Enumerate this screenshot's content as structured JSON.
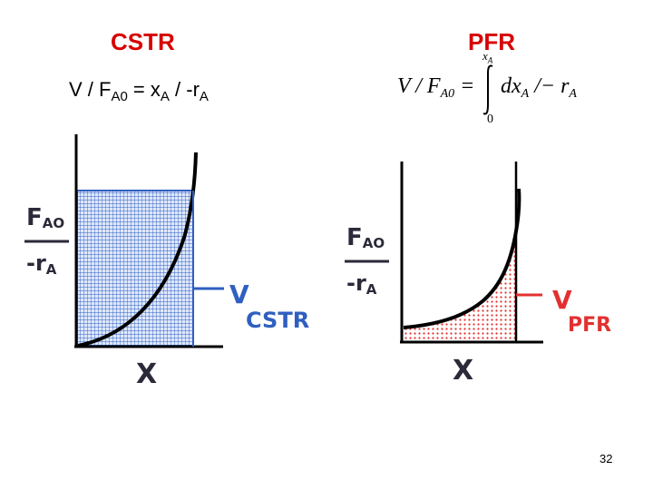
{
  "cstr": {
    "title": "CSTR",
    "equation": {
      "lhs_v": "V / F",
      "lhs_sub": "A0",
      "mid": " = x",
      "mid_sub": "A",
      "rhs": " / -r",
      "rhs_sub": "A"
    },
    "graph": {
      "ylabel_num": "F",
      "ylabel_num_sub": "AO",
      "ylabel_den": "-r",
      "ylabel_den_sub": "A",
      "xlabel": "X",
      "area_label_main": "V",
      "area_label_sub": "CSTR",
      "fill_color": "#2f5fc0"
    }
  },
  "pfr": {
    "title": "PFR",
    "equation": {
      "lhs": "V / F",
      "lhs_sub": "A0",
      "eq": " =",
      "upper_limit": "x",
      "upper_limit_sub": "A",
      "lower_limit": "0",
      "integrand": "dx",
      "integrand_sub": "A",
      "rest": " /− r",
      "rest_sub": "A"
    },
    "graph": {
      "ylabel_num": "F",
      "ylabel_num_sub": "AO",
      "ylabel_den": "-r",
      "ylabel_den_sub": "A",
      "xlabel": "X",
      "area_label_main": "V",
      "area_label_sub": "PFR",
      "fill_color": "#e23030"
    }
  },
  "page_number": "32"
}
